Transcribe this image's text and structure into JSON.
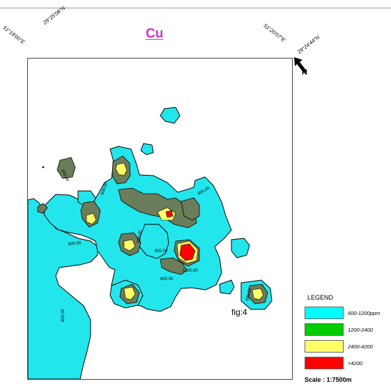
{
  "map": {
    "title": "Cu",
    "figure_label": "fig:4",
    "coordinates": {
      "top_left_1": "51°19'00\"E",
      "top_left_2": "29°25'08\"N",
      "top_right_1": "51°20'07\"E",
      "top_right_2": "29°24'44\"N"
    },
    "north_label": "N",
    "contour_labels": [
      "600.00",
      "600.00",
      "600.00",
      "600.00",
      "600.00",
      "600.00",
      "600.00",
      "600.00",
      "1200.00",
      "600.00"
    ],
    "legend": {
      "title": "LEGEND",
      "items": [
        {
          "label": "600-1200ppm",
          "color": "#00ffff"
        },
        {
          "label": "1200-2400",
          "color": "#00cc00"
        },
        {
          "label": "2400-4200",
          "color": "#ffff66"
        },
        {
          "label": ">4200",
          "color": "#ff0000"
        }
      ]
    },
    "scale": "Scale : 1:7500m",
    "colors": {
      "cyan_zone": "#22e6ec",
      "olive_zone": "#6b7d5a",
      "yellow_zone": "#ffff66",
      "red_zone": "#ff0000",
      "title": "#cc33cc"
    }
  }
}
